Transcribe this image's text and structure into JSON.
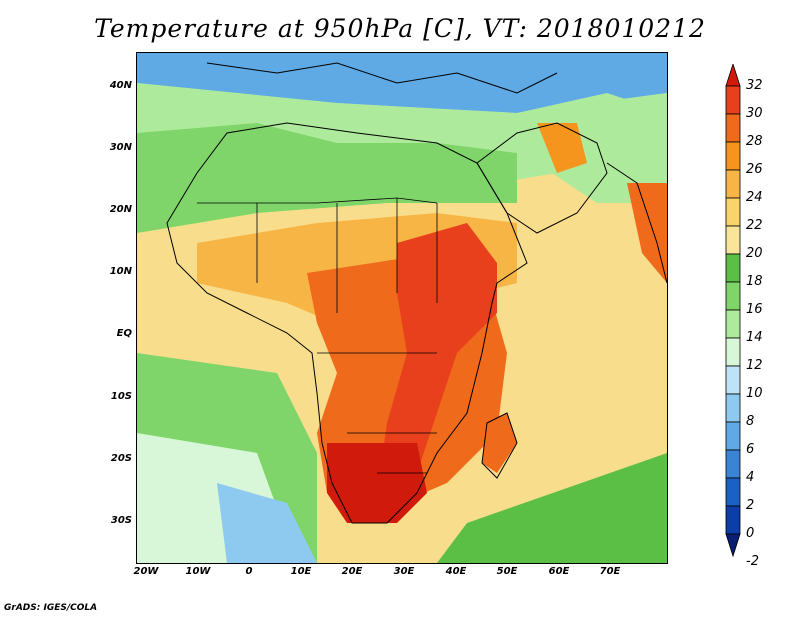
{
  "title": "Temperature at 950hPa [C], VT: 2018010212",
  "footer": "GrADS: IGES/COLA",
  "map": {
    "lat_labels": [
      "40N",
      "30N",
      "20N",
      "10N",
      "EQ",
      "10S",
      "20S",
      "30S"
    ],
    "lon_labels": [
      "20W",
      "10W",
      "0",
      "10E",
      "20E",
      "30E",
      "40E",
      "50E",
      "60E",
      "70E"
    ]
  },
  "colorbar": {
    "labels": [
      "32",
      "30",
      "28",
      "26",
      "24",
      "22",
      "20",
      "18",
      "16",
      "14",
      "12",
      "10",
      "8",
      "6",
      "4",
      "2",
      "0",
      "-2"
    ],
    "colors": [
      "#d01a0c",
      "#e8401c",
      "#f06a1c",
      "#f5951e",
      "#f7b546",
      "#f9d36b",
      "#f8e59a",
      "#5bbf45",
      "#7fd56a",
      "#aeea9b",
      "#d8f7d8",
      "#bfe3f6",
      "#8ecaf0",
      "#5fa9e4",
      "#3a84d6",
      "#1b60c4",
      "#0d3da6",
      "#0a1f72"
    ]
  }
}
